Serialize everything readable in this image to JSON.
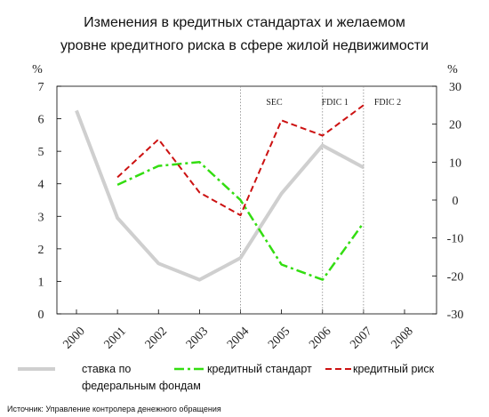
{
  "chart_data": {
    "type": "line",
    "title": [
      "Изменения в кредитных стандартах и желаемом",
      "уровне кредитного риска в сфере жилой недвижимости"
    ],
    "left_axis": {
      "unit": "%",
      "ylim": [
        0,
        7
      ],
      "ticks": [
        "0",
        "1",
        "2",
        "3",
        "4",
        "5",
        "6",
        "7"
      ]
    },
    "right_axis": {
      "unit": "%",
      "ylim": [
        -30,
        30
      ],
      "ticks": [
        "-30",
        "-20",
        "-10",
        "0",
        "10",
        "20",
        "30"
      ]
    },
    "categories": [
      "2000",
      "2001",
      "2002",
      "2003",
      "2004",
      "2005",
      "2006",
      "2007",
      "2008"
    ],
    "series": [
      {
        "name": "ставка по федеральным фондам",
        "legend_lines": [
          "ставка по",
          "федеральным фондам"
        ],
        "axis": "left",
        "color": "#cfcfcf",
        "style": "solid",
        "x": [
          "2000",
          "2001",
          "2002",
          "2003",
          "2004",
          "2005",
          "2006",
          "2007"
        ],
        "values": [
          6.25,
          2.95,
          1.55,
          1.05,
          1.72,
          3.7,
          5.18,
          4.5
        ]
      },
      {
        "name": "кредитный стандарт",
        "axis": "right",
        "color": "#33dd11",
        "style": "dashdot",
        "x": [
          "2001",
          "2002",
          "2003",
          "2004",
          "2005",
          "2006",
          "2007"
        ],
        "values": [
          4,
          9,
          10,
          0,
          -17,
          -21,
          -6
        ]
      },
      {
        "name": "кредитный риск",
        "axis": "right",
        "color": "#cc1111",
        "style": "dashed",
        "x": [
          "2001",
          "2002",
          "2003",
          "2004",
          "2005",
          "2006",
          "2007"
        ],
        "values": [
          6,
          16,
          2,
          -4,
          21,
          17,
          25
        ]
      }
    ],
    "annotations": [
      {
        "text": "SEC",
        "x": "2004"
      },
      {
        "text": "FDIC 1",
        "x": "2006"
      },
      {
        "text": "FDIC 2",
        "x": "2007"
      }
    ],
    "grid": false,
    "legend_position": "bottom",
    "source": "Источник: Управление контролера денежного обращения"
  }
}
